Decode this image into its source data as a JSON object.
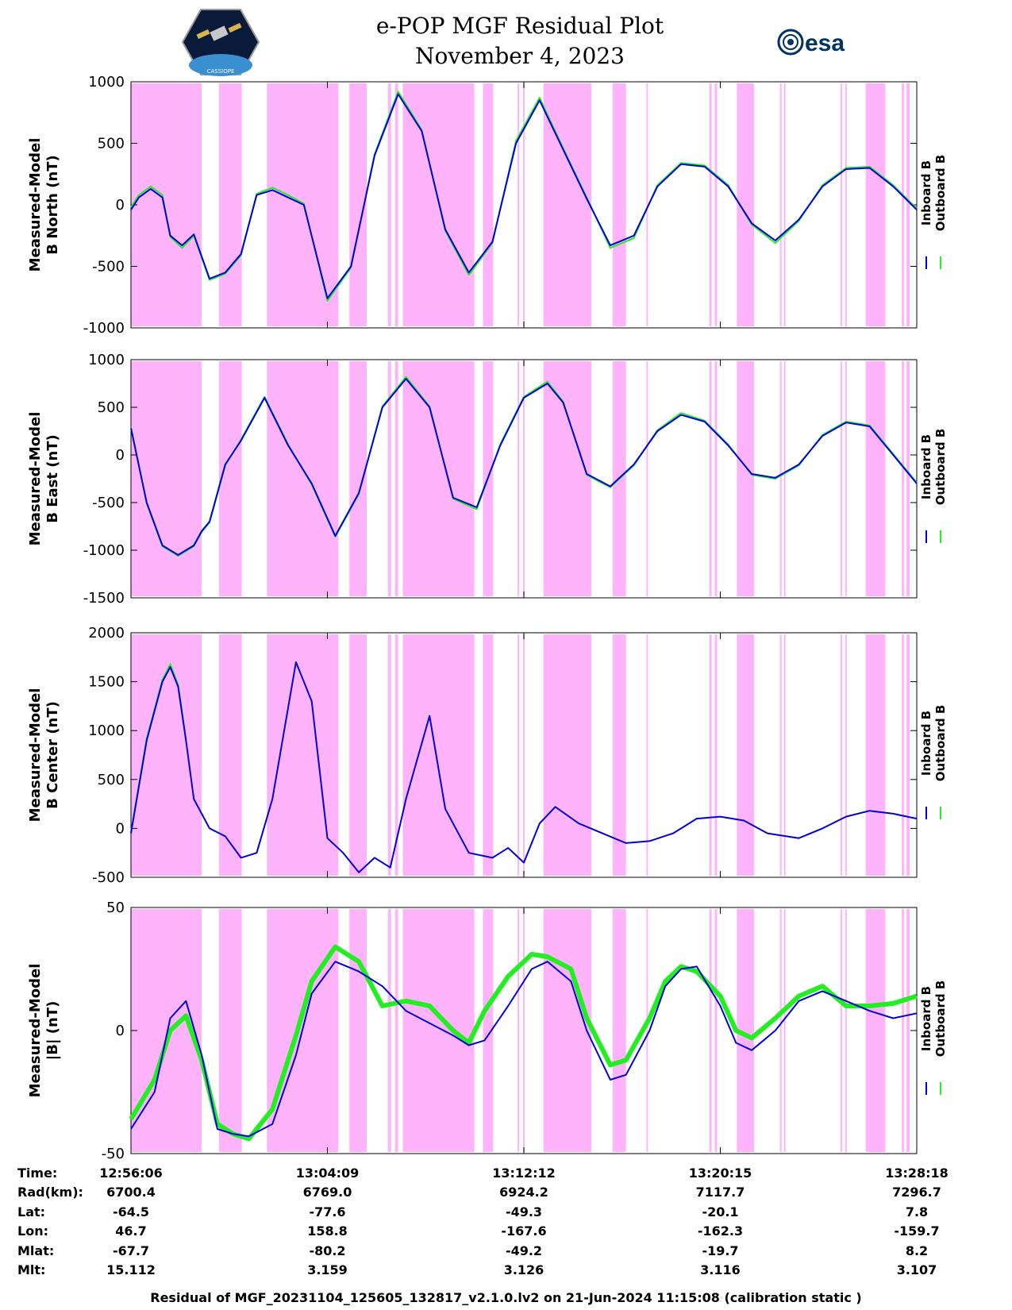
{
  "header": {
    "title_line1": "e-POP MGF Residual Plot",
    "title_line2": "November 4, 2023",
    "left_logo": "cassiope-mission-logo",
    "left_logo_text": "CASSIOPE",
    "right_logo": "esa-logo",
    "right_logo_text": "esa"
  },
  "colors": {
    "inboard": "#0000dd",
    "outboard": "#22ee22",
    "shade": "#ffb3fb"
  },
  "chart_data": [
    {
      "type": "line",
      "ylabel_line1": "Measured-Model",
      "ylabel_line2": "B North (nT)",
      "ylim": [
        -1000,
        1000
      ],
      "yticks": [
        "1000",
        "500",
        "0",
        "-500",
        "-1000"
      ],
      "legend": [
        "Inboard B",
        "Outboard B"
      ],
      "series": [
        {
          "name": "Inboard B",
          "t": [
            0,
            1,
            2.5,
            4,
            5,
            6.5,
            8,
            10,
            12,
            14,
            16,
            18,
            20,
            22,
            25,
            28,
            31,
            34,
            37,
            40,
            43,
            46,
            49,
            52,
            55,
            58,
            61,
            64,
            67,
            70,
            73,
            76,
            79,
            82,
            85,
            88,
            91,
            94,
            97,
            100
          ],
          "values": [
            -40,
            60,
            130,
            60,
            -250,
            -330,
            -240,
            -600,
            -550,
            -400,
            80,
            120,
            60,
            0,
            -760,
            -500,
            400,
            900,
            600,
            -200,
            -550,
            -300,
            500,
            850,
            450,
            50,
            -330,
            -250,
            150,
            330,
            310,
            150,
            -150,
            -290,
            -120,
            150,
            290,
            300,
            150,
            -40
          ]
        },
        {
          "name": "Outboard B",
          "t": [
            0,
            1,
            2.5,
            4,
            5,
            6.5,
            8,
            10,
            12,
            14,
            16,
            18,
            20,
            22,
            25,
            28,
            31,
            34,
            37,
            40,
            43,
            46,
            49,
            52,
            55,
            58,
            61,
            64,
            67,
            70,
            73,
            76,
            79,
            82,
            85,
            88,
            91,
            94,
            97,
            100
          ],
          "values": [
            -20,
            80,
            150,
            80,
            -260,
            -350,
            -250,
            -610,
            -560,
            -410,
            90,
            140,
            80,
            10,
            -780,
            -510,
            410,
            920,
            610,
            -210,
            -570,
            -310,
            520,
            870,
            460,
            60,
            -350,
            -270,
            160,
            340,
            320,
            160,
            -160,
            -310,
            -130,
            160,
            300,
            310,
            160,
            -30
          ]
        }
      ]
    },
    {
      "type": "line",
      "ylabel_line1": "Measured-Model",
      "ylabel_line2": "B East (nT)",
      "ylim": [
        -1500,
        1000
      ],
      "yticks": [
        "1000",
        "500",
        "0",
        "-500",
        "-1000",
        "-1500"
      ],
      "legend": [
        "Inboard B",
        "Outboard B"
      ],
      "series": [
        {
          "name": "Inboard B",
          "t": [
            0,
            2,
            4,
            6,
            8,
            9,
            10,
            12,
            14,
            17,
            20,
            23,
            26,
            29,
            32,
            35,
            38,
            41,
            44,
            47,
            50,
            53,
            55,
            58,
            61,
            64,
            67,
            70,
            73,
            76,
            79,
            82,
            85,
            88,
            91,
            94,
            97,
            100
          ],
          "values": [
            280,
            -500,
            -950,
            -1050,
            -950,
            -800,
            -700,
            -100,
            150,
            600,
            100,
            -300,
            -850,
            -400,
            500,
            800,
            500,
            -450,
            -550,
            100,
            600,
            750,
            550,
            -200,
            -330,
            -100,
            250,
            420,
            350,
            100,
            -200,
            -240,
            -100,
            200,
            340,
            300,
            0,
            -300
          ]
        },
        {
          "name": "Outboard B",
          "t": [
            0,
            2,
            4,
            6,
            8,
            9,
            10,
            12,
            14,
            17,
            20,
            23,
            26,
            29,
            32,
            35,
            38,
            41,
            44,
            47,
            50,
            53,
            55,
            58,
            61,
            64,
            67,
            70,
            73,
            76,
            79,
            82,
            85,
            88,
            91,
            94,
            97,
            100
          ],
          "values": [
            290,
            -510,
            -960,
            -1060,
            -960,
            -810,
            -710,
            -110,
            160,
            610,
            110,
            -310,
            -860,
            -410,
            510,
            820,
            510,
            -460,
            -570,
            110,
            610,
            770,
            560,
            -210,
            -340,
            -110,
            260,
            440,
            360,
            110,
            -210,
            -250,
            -110,
            210,
            350,
            310,
            10,
            -290
          ]
        }
      ]
    },
    {
      "type": "line",
      "ylabel_line1": "Measured-Model",
      "ylabel_line2": "B Center (nT)",
      "ylim": [
        -500,
        2000
      ],
      "yticks": [
        "2000",
        "1500",
        "1000",
        "500",
        "0",
        "-500"
      ],
      "legend": [
        "Inboard B",
        "Outboard B"
      ],
      "series": [
        {
          "name": "Inboard B",
          "t": [
            0,
            2,
            4,
            5,
            6,
            7,
            8,
            10,
            12,
            14,
            16,
            18,
            21,
            23,
            25,
            27,
            29,
            31,
            33,
            35,
            38,
            40,
            43,
            46,
            48,
            50,
            52,
            54,
            57,
            60,
            63,
            66,
            69,
            72,
            75,
            78,
            81,
            85,
            88,
            91,
            94,
            97,
            100
          ],
          "values": [
            -50,
            900,
            1500,
            1650,
            1450,
            900,
            300,
            0,
            -80,
            -300,
            -250,
            300,
            1700,
            1300,
            -100,
            -250,
            -450,
            -300,
            -400,
            300,
            1150,
            200,
            -250,
            -300,
            -200,
            -350,
            50,
            220,
            50,
            -50,
            -150,
            -130,
            -50,
            100,
            120,
            80,
            -50,
            -100,
            0,
            120,
            180,
            150,
            100
          ]
        },
        {
          "name": "Outboard B",
          "t": [
            0,
            2,
            4,
            5,
            6,
            7
          ],
          "values": [
            -40,
            920,
            1520,
            1680,
            1470,
            910
          ]
        }
      ]
    },
    {
      "type": "line",
      "ylabel_line1": "Measured-Model",
      "ylabel_line2": "|B| (nT)",
      "ylim": [
        -50,
        50
      ],
      "yticks": [
        "50",
        "0",
        "-50"
      ],
      "legend": [
        "Inboard B",
        "Outboard B"
      ],
      "series": [
        {
          "name": "Inboard B",
          "t": [
            0,
            3,
            5,
            7,
            9,
            11,
            13,
            15,
            18,
            21,
            23,
            26,
            29,
            32,
            35,
            38,
            41,
            43,
            45,
            48,
            51,
            53,
            56,
            58,
            61,
            63,
            66,
            68,
            70,
            72,
            75,
            77,
            79,
            82,
            85,
            88,
            91,
            94,
            97,
            100
          ],
          "values": [
            -40,
            -25,
            5,
            12,
            -10,
            -40,
            -42,
            -43,
            -38,
            -10,
            15,
            28,
            24,
            18,
            8,
            3,
            -2,
            -6,
            -4,
            10,
            25,
            28,
            20,
            0,
            -20,
            -18,
            0,
            18,
            25,
            26,
            10,
            -5,
            -8,
            0,
            12,
            16,
            12,
            8,
            5,
            7
          ]
        },
        {
          "name": "Outboard B",
          "t": [
            0,
            3,
            5,
            7,
            9,
            11,
            13,
            15,
            18,
            21,
            23,
            26,
            29,
            32,
            35,
            38,
            41,
            43,
            45,
            48,
            51,
            53,
            56,
            58,
            61,
            63,
            66,
            68,
            70,
            72,
            75,
            77,
            79,
            82,
            85,
            88,
            91,
            94,
            97,
            100
          ],
          "values": [
            -36,
            -20,
            0,
            6,
            -12,
            -38,
            -42,
            -44,
            -32,
            -2,
            20,
            34,
            28,
            10,
            12,
            10,
            0,
            -5,
            8,
            22,
            31,
            30,
            25,
            5,
            -14,
            -12,
            5,
            20,
            26,
            24,
            14,
            0,
            -3,
            5,
            14,
            18,
            10,
            10,
            11,
            14
          ]
        }
      ]
    }
  ],
  "shaded_intervals": [
    [
      0,
      9
    ],
    [
      11.2,
      14.1
    ],
    [
      17.3,
      26.4
    ],
    [
      27.8,
      30
    ],
    [
      32.7,
      33.1
    ],
    [
      33.6,
      34
    ],
    [
      34.6,
      43.7
    ],
    [
      44.8,
      46.1
    ],
    [
      49.2,
      49.4
    ],
    [
      49.9,
      50.1
    ],
    [
      52.5,
      58.6
    ],
    [
      61.3,
      63
    ],
    [
      65.6,
      65.8
    ],
    [
      73.6,
      73.9
    ],
    [
      74.3,
      74.6
    ],
    [
      77.1,
      79.3
    ],
    [
      82.6,
      82.8
    ],
    [
      83.1,
      83.3
    ],
    [
      90.3,
      90.5
    ],
    [
      90.9,
      91.1
    ],
    [
      93.5,
      96
    ],
    [
      98.1,
      98.4
    ],
    [
      98.7,
      99.1
    ]
  ],
  "x_axis": {
    "row_labels": [
      "Time:",
      "Rad(km):",
      "Lat:",
      "Lon:",
      "Mlat:",
      "Mlt:"
    ],
    "columns": [
      {
        "Time": "12:56:06",
        "Rad": "6700.4",
        "Lat": "-64.5",
        "Lon": "46.7",
        "Mlat": "-67.7",
        "Mlt": "15.112"
      },
      {
        "Time": "13:04:09",
        "Rad": "6769.0",
        "Lat": "-77.6",
        "Lon": "158.8",
        "Mlat": "-80.2",
        "Mlt": "3.159"
      },
      {
        "Time": "13:12:12",
        "Rad": "6924.2",
        "Lat": "-49.3",
        "Lon": "-167.6",
        "Mlat": "-49.2",
        "Mlt": "3.126"
      },
      {
        "Time": "13:20:15",
        "Rad": "7117.7",
        "Lat": "-20.1",
        "Lon": "-162.3",
        "Mlat": "-19.7",
        "Mlt": "3.116"
      },
      {
        "Time": "13:28:18",
        "Rad": "7296.7",
        "Lat": "7.8",
        "Lon": "-159.7",
        "Mlat": "8.2",
        "Mlt": "3.107"
      }
    ]
  },
  "footer": "Residual of MGF_20231104_125605_132817_v2.1.0.lv2 on 21-Jun-2024 11:15:08 (calibration static )"
}
